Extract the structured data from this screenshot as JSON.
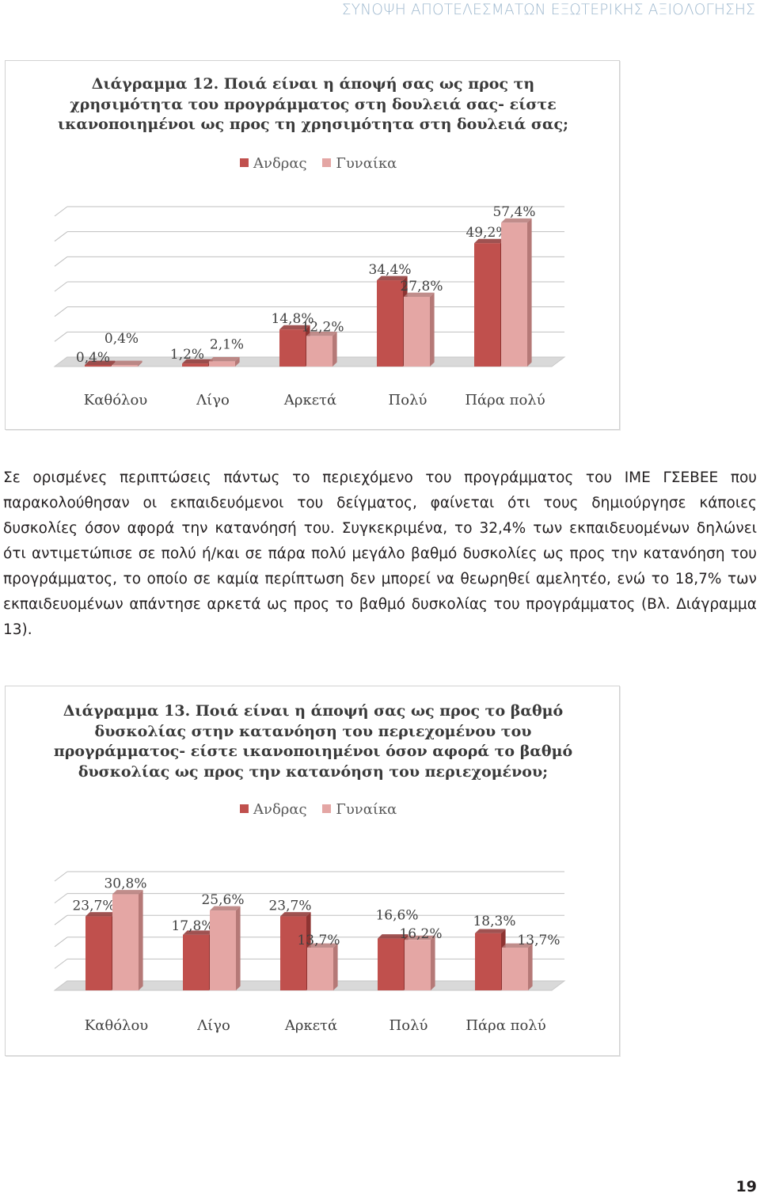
{
  "header": {
    "running_title": "ΣΥΝΟΨΗ ΑΠΟΤΕΛΕΣΜΑΤΩΝ ΕΞΩΤΕΡΙΚΗΣ ΑΞΙΟΛΟΓΗΣΗΣ"
  },
  "colors": {
    "men": "#c0504d",
    "women": "#e4a6a4",
    "men_side": "#8e3432",
    "women_side": "#b57977",
    "floor": "#d9d9d9",
    "grid": "#bfbfbf"
  },
  "chart_data": [
    {
      "type": "bar",
      "title_lines": [
        "Διάγραμμα 12. Ποιά είναι η άποψή σας ως προς τη",
        "χρησιμότητα του προγράμματος στη δουλειά σας- είστε",
        "ικανοποιημένοι ως προς τη χρησιμότητα στη δουλειά σας;"
      ],
      "categories": [
        "Καθόλου",
        "Λίγο",
        "Αρκετά",
        "Πολύ",
        "Πάρα πολύ"
      ],
      "series": [
        {
          "name": "Ανδρας",
          "values": [
            0.4,
            1.2,
            14.8,
            34.4,
            49.2
          ],
          "labels": [
            "0,4%",
            "1,2%",
            "14,8%",
            "34,4%",
            "49,2%"
          ]
        },
        {
          "name": "Γυναίκα",
          "values": [
            0.4,
            2.1,
            12.2,
            27.8,
            57.4
          ],
          "labels": [
            "0,4%",
            "2,1%",
            "12,2%",
            "27,8%",
            "57,4%"
          ]
        }
      ],
      "ylim": [
        0,
        60
      ],
      "grid": true,
      "legend": "top"
    },
    {
      "type": "bar",
      "title_lines": [
        "Διάγραμμα 13. Ποιά είναι η άποψή σας ως προς το βαθμό",
        "δυσκολίας στην κατανόηση του περιεχομένου του",
        "προγράμματος- είστε ικανοποιημένοι όσον αφορά το βαθμό",
        "δυσκολίας ως προς την κατανόηση του περιεχομένου;"
      ],
      "categories": [
        "Καθόλου",
        "Λίγο",
        "Αρκετά",
        "Πολύ",
        "Πάρα πολύ"
      ],
      "series": [
        {
          "name": "Ανδρας",
          "values": [
            23.7,
            17.8,
            23.7,
            16.6,
            18.3
          ],
          "labels": [
            "23,7%",
            "17,8%",
            "23,7%",
            "16,6%",
            "18,3%"
          ]
        },
        {
          "name": "Γυναίκα",
          "values": [
            30.8,
            25.6,
            13.7,
            16.2,
            13.7
          ],
          "labels": [
            "30,8%",
            "25,6%",
            "13,7%",
            "16,2%",
            "13,7%"
          ]
        }
      ],
      "ylim": [
        0,
        35
      ],
      "grid": true,
      "legend": "top"
    }
  ],
  "body": {
    "paragraph": "Σε ορισμένες περιπτώσεις πάντως το περιεχόμενο του προγράμματος του ΙΜΕ ΓΣΕΒΕΕ που παρακολούθησαν οι εκπαιδευόμενοι του δείγματος, φαίνεται ότι τους δημιούργησε κάποιες δυσκολίες όσον αφορά την κατανόησή του. Συγκεκριμένα, το 32,4% των εκπαιδευομένων δηλώνει ότι αντιμετώπισε σε πολύ ή/και σε πάρα πολύ μεγάλο βαθμό δυσκολίες ως προς την κατανόηση του προγράμματος, το οποίο σε καμία περίπτωση δεν μπορεί να θεωρηθεί αμελητέο, ενώ το 18,7% των εκπαιδευομένων απάντησε αρκετά ως προς το βαθμό δυσκολίας του προγράμματος (Βλ. Διάγραμμα 13)."
  },
  "footer": {
    "page_number": "19"
  }
}
